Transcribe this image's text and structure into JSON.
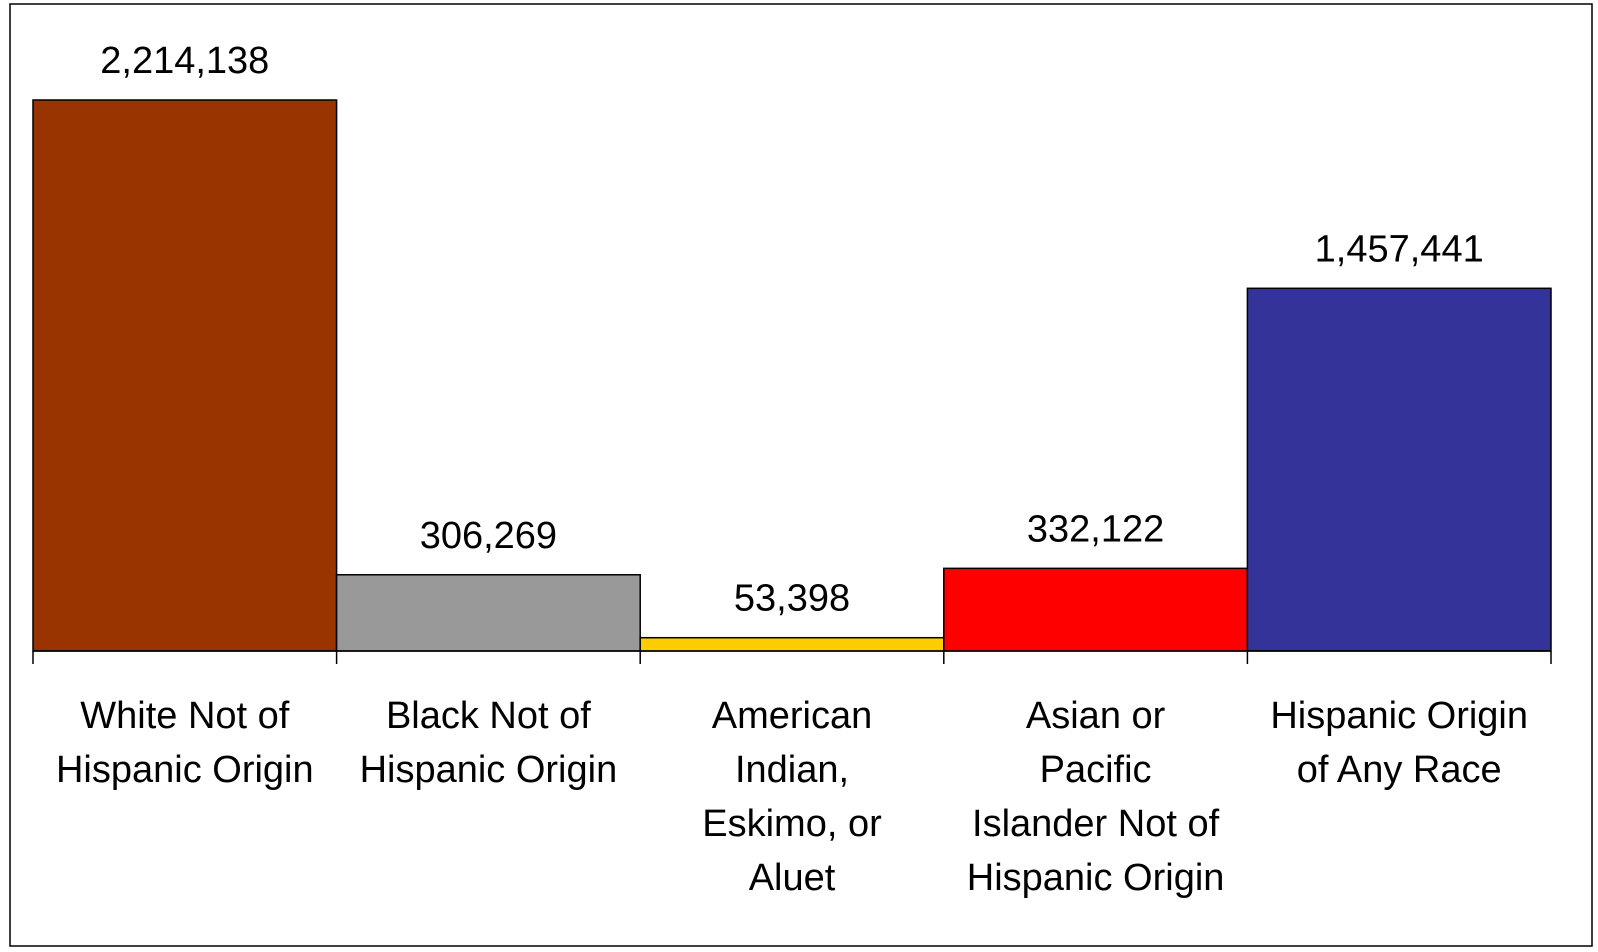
{
  "chart_data": {
    "type": "bar",
    "title": "",
    "xlabel": "",
    "ylabel": "",
    "ylim": [
      0,
      2500000
    ],
    "grid": false,
    "legend": "none",
    "categories": [
      [
        "White Not of",
        "Hispanic Origin"
      ],
      [
        "Black Not of",
        "Hispanic Origin"
      ],
      [
        "American",
        "Indian,",
        "Eskimo, or",
        "Aluet"
      ],
      [
        "Asian or",
        "Pacific",
        "Islander Not of",
        "Hispanic Origin"
      ],
      [
        "Hispanic Origin",
        "of Any Race"
      ]
    ],
    "values": [
      2214138,
      306269,
      53398,
      332122,
      1457441
    ],
    "value_labels": [
      "2,214,138",
      "306,269",
      "53,398",
      "332,122",
      "1,457,441"
    ],
    "colors": [
      "#993300",
      "#999999",
      "#FFCC00",
      "#FF0000",
      "#333399"
    ]
  }
}
